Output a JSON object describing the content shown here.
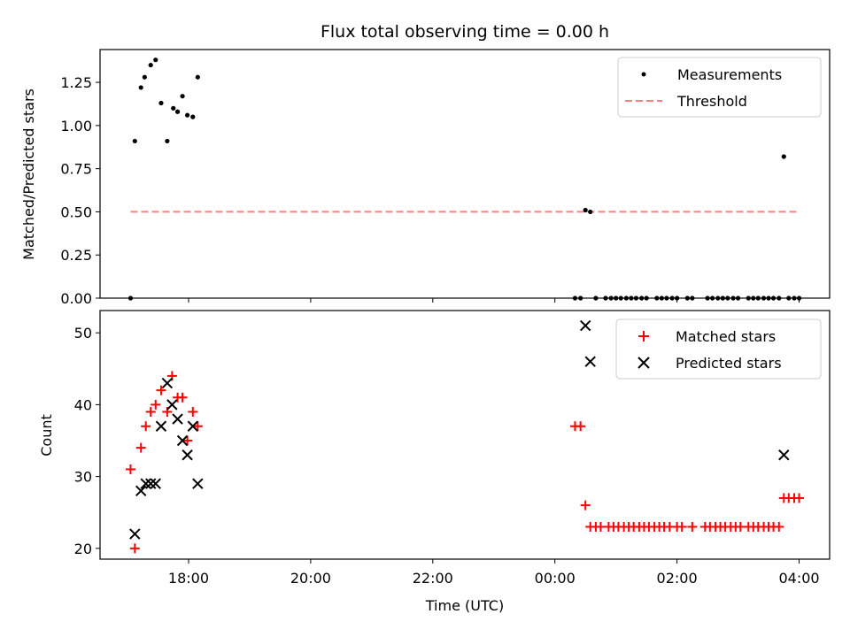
{
  "title": "Flux total observing time = 0.00 h",
  "colors": {
    "measurement": "#000000",
    "threshold": "#ff7f7f",
    "matched": "#ff0000",
    "predicted": "#000000"
  },
  "chart_data": [
    {
      "type": "scatter",
      "ylabel": "Matched/Predicted stars",
      "xlim": [
        16.55,
        28.5
      ],
      "ylim": [
        0,
        1.44
      ],
      "yticks": [
        0,
        0.25,
        0.5,
        0.75,
        1.0,
        1.25
      ],
      "ytick_labels": [
        "0.00",
        "0.25",
        "0.50",
        "0.75",
        "1.00",
        "1.25"
      ],
      "legend": [
        "Measurements",
        "Threshold"
      ],
      "threshold": {
        "name": "Threshold",
        "x": [
          17.05,
          28.0
        ],
        "y": 0.5
      },
      "series": [
        {
          "name": "Measurements",
          "points": [
            [
              17.05,
              0.0
            ],
            [
              17.12,
              0.91
            ],
            [
              17.22,
              1.22
            ],
            [
              17.28,
              1.28
            ],
            [
              17.38,
              1.35
            ],
            [
              17.46,
              1.38
            ],
            [
              17.55,
              1.13
            ],
            [
              17.65,
              0.91
            ],
            [
              17.75,
              1.1
            ],
            [
              17.82,
              1.08
            ],
            [
              17.9,
              1.17
            ],
            [
              17.98,
              1.06
            ],
            [
              18.07,
              1.05
            ],
            [
              18.15,
              1.28
            ],
            [
              24.33,
              0.0
            ],
            [
              24.42,
              0.0
            ],
            [
              24.5,
              0.51
            ],
            [
              24.58,
              0.5
            ],
            [
              24.67,
              0.0
            ],
            [
              24.83,
              0.0
            ],
            [
              24.92,
              0.0
            ],
            [
              25.0,
              0.0
            ],
            [
              25.08,
              0.0
            ],
            [
              25.17,
              0.0
            ],
            [
              25.25,
              0.0
            ],
            [
              25.33,
              0.0
            ],
            [
              25.42,
              0.0
            ],
            [
              25.5,
              0.0
            ],
            [
              25.67,
              0.0
            ],
            [
              25.75,
              0.0
            ],
            [
              25.83,
              0.0
            ],
            [
              25.92,
              0.0
            ],
            [
              26.0,
              0.0
            ],
            [
              26.17,
              0.0
            ],
            [
              26.25,
              0.0
            ],
            [
              26.5,
              0.0
            ],
            [
              26.58,
              0.0
            ],
            [
              26.67,
              0.0
            ],
            [
              26.75,
              0.0
            ],
            [
              26.83,
              0.0
            ],
            [
              26.92,
              0.0
            ],
            [
              27.0,
              0.0
            ],
            [
              27.17,
              0.0
            ],
            [
              27.25,
              0.0
            ],
            [
              27.33,
              0.0
            ],
            [
              27.42,
              0.0
            ],
            [
              27.5,
              0.0
            ],
            [
              27.58,
              0.0
            ],
            [
              27.67,
              0.0
            ],
            [
              27.75,
              0.82
            ],
            [
              27.83,
              0.0
            ],
            [
              27.92,
              0.0
            ],
            [
              28.0,
              0.0
            ]
          ]
        }
      ]
    },
    {
      "type": "scatter",
      "xlabel": "Time (UTC)",
      "ylabel": "Count",
      "xlim": [
        16.55,
        28.5
      ],
      "ylim": [
        18.5,
        53.1
      ],
      "yticks": [
        20,
        30,
        40,
        50
      ],
      "ytick_labels": [
        "20",
        "30",
        "40",
        "50"
      ],
      "xticks": [
        18,
        20,
        22,
        24,
        26,
        28
      ],
      "xtick_labels": [
        "18:00",
        "20:00",
        "22:00",
        "00:00",
        "02:00",
        "04:00"
      ],
      "legend": [
        "Matched stars",
        "Predicted stars"
      ],
      "series": [
        {
          "name": "Matched stars",
          "marker": "plus",
          "points": [
            [
              17.05,
              31
            ],
            [
              17.12,
              20
            ],
            [
              17.22,
              34
            ],
            [
              17.3,
              37
            ],
            [
              17.38,
              39
            ],
            [
              17.46,
              40
            ],
            [
              17.55,
              42
            ],
            [
              17.65,
              39
            ],
            [
              17.73,
              44
            ],
            [
              17.82,
              41
            ],
            [
              17.9,
              41
            ],
            [
              17.98,
              35
            ],
            [
              18.07,
              39
            ],
            [
              18.15,
              37
            ],
            [
              24.33,
              37
            ],
            [
              24.42,
              37
            ],
            [
              24.5,
              26
            ],
            [
              24.58,
              23
            ],
            [
              24.67,
              23
            ],
            [
              24.75,
              23
            ],
            [
              24.88,
              23
            ],
            [
              24.96,
              23
            ],
            [
              25.04,
              23
            ],
            [
              25.13,
              23
            ],
            [
              25.21,
              23
            ],
            [
              25.29,
              23
            ],
            [
              25.38,
              23
            ],
            [
              25.46,
              23
            ],
            [
              25.54,
              23
            ],
            [
              25.63,
              23
            ],
            [
              25.71,
              23
            ],
            [
              25.79,
              23
            ],
            [
              25.88,
              23
            ],
            [
              26.0,
              23
            ],
            [
              26.08,
              23
            ],
            [
              26.25,
              23
            ],
            [
              26.46,
              23
            ],
            [
              26.54,
              23
            ],
            [
              26.63,
              23
            ],
            [
              26.71,
              23
            ],
            [
              26.79,
              23
            ],
            [
              26.88,
              23
            ],
            [
              26.96,
              23
            ],
            [
              27.04,
              23
            ],
            [
              27.17,
              23
            ],
            [
              27.25,
              23
            ],
            [
              27.33,
              23
            ],
            [
              27.42,
              23
            ],
            [
              27.5,
              23
            ],
            [
              27.58,
              23
            ],
            [
              27.67,
              23
            ],
            [
              27.75,
              27
            ],
            [
              27.83,
              27
            ],
            [
              27.92,
              27
            ],
            [
              28.0,
              27
            ]
          ]
        },
        {
          "name": "Predicted stars",
          "marker": "x",
          "points": [
            [
              17.12,
              22
            ],
            [
              17.22,
              28
            ],
            [
              17.3,
              29
            ],
            [
              17.38,
              29
            ],
            [
              17.46,
              29
            ],
            [
              17.55,
              37
            ],
            [
              17.65,
              43
            ],
            [
              17.73,
              40
            ],
            [
              17.82,
              38
            ],
            [
              17.9,
              35
            ],
            [
              17.98,
              33
            ],
            [
              18.07,
              37
            ],
            [
              18.15,
              29
            ],
            [
              24.5,
              51
            ],
            [
              24.58,
              46
            ],
            [
              27.75,
              33
            ]
          ]
        }
      ]
    }
  ]
}
